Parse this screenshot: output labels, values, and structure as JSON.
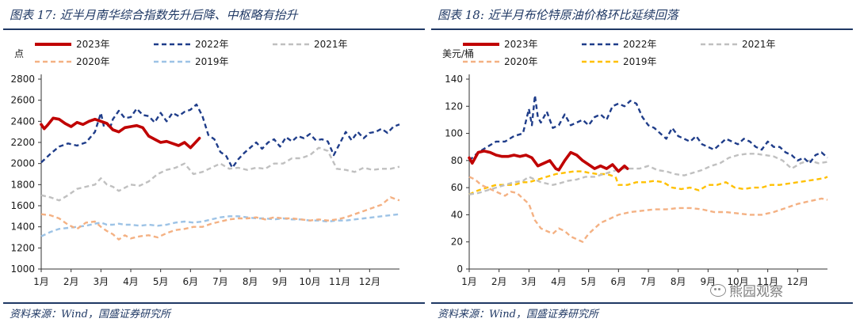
{
  "figures": [
    {
      "title": "图表 17:  近半月南华综合指数先升后降、中枢略有抬升",
      "source": "资料来源：Wind，国盛证券研究所"
    },
    {
      "title": "图表 18:  近半月布伦特原油价格环比延续回落",
      "source": "资料来源：Wind，国盛证券研究所",
      "watermark": "熊园观察"
    }
  ],
  "chart_data": [
    {
      "type": "line",
      "ylabel": "点",
      "ylim": [
        1000,
        2800
      ],
      "yticks": [
        1000,
        1200,
        1400,
        1600,
        1800,
        2000,
        2200,
        2400,
        2600,
        2800
      ],
      "xlim": [
        1,
        13
      ],
      "xticks": [
        1,
        2,
        3,
        4,
        5,
        6,
        7,
        8,
        9,
        10,
        11,
        12
      ],
      "xtick_labels": [
        "1月",
        "2月",
        "3月",
        "4月",
        "5月",
        "6月",
        "7月",
        "8月",
        "9月",
        "10月",
        "11月",
        "12月"
      ],
      "legend_placement": "top",
      "series": [
        {
          "name": "2023年",
          "color": "#c00000",
          "style": "solid",
          "width": 3.6,
          "x": [
            1.0,
            1.1,
            1.2,
            1.4,
            1.6,
            1.8,
            2.0,
            2.2,
            2.4,
            2.6,
            2.8,
            3.0,
            3.2,
            3.4,
            3.6,
            3.8,
            4.0,
            4.2,
            4.4,
            4.6,
            4.8,
            5.0,
            5.2,
            5.4,
            5.6,
            5.8,
            6.0,
            6.1,
            6.3
          ],
          "y": [
            2370,
            2330,
            2360,
            2430,
            2420,
            2380,
            2350,
            2390,
            2370,
            2400,
            2420,
            2400,
            2380,
            2320,
            2300,
            2340,
            2350,
            2360,
            2340,
            2260,
            2230,
            2200,
            2210,
            2190,
            2170,
            2200,
            2150,
            2180,
            2240
          ]
        },
        {
          "name": "2022年",
          "color": "#1f3d8a",
          "style": "dashed",
          "width": 2.4,
          "x": [
            1.0,
            1.3,
            1.6,
            1.9,
            2.2,
            2.5,
            2.8,
            3.0,
            3.1,
            3.2,
            3.3,
            3.4,
            3.6,
            3.8,
            4.0,
            4.2,
            4.4,
            4.6,
            4.8,
            5.0,
            5.2,
            5.4,
            5.6,
            5.8,
            6.0,
            6.2,
            6.4,
            6.6,
            6.8,
            7.0,
            7.2,
            7.4,
            7.6,
            7.8,
            8.0,
            8.2,
            8.4,
            8.6,
            8.8,
            9.0,
            9.2,
            9.4,
            9.6,
            9.8,
            10.0,
            10.2,
            10.4,
            10.6,
            10.8,
            11.0,
            11.2,
            11.4,
            11.6,
            11.8,
            12.0,
            12.2,
            12.4,
            12.6,
            12.8,
            13.0
          ],
          "y": [
            2010,
            2090,
            2160,
            2190,
            2170,
            2200,
            2300,
            2480,
            2350,
            2380,
            2330,
            2420,
            2500,
            2430,
            2440,
            2520,
            2460,
            2450,
            2390,
            2480,
            2400,
            2480,
            2450,
            2490,
            2510,
            2560,
            2450,
            2270,
            2230,
            2110,
            2070,
            1960,
            2040,
            2100,
            2150,
            2200,
            2140,
            2200,
            2230,
            2160,
            2250,
            2210,
            2260,
            2240,
            2280,
            2220,
            2230,
            2210,
            2080,
            2190,
            2300,
            2220,
            2300,
            2240,
            2290,
            2300,
            2330,
            2290,
            2350,
            2370
          ]
        },
        {
          "name": "2021年",
          "color": "#c0c0c0",
          "style": "dashed",
          "width": 2.4,
          "x": [
            1.0,
            1.3,
            1.6,
            1.9,
            2.2,
            2.5,
            2.8,
            3.0,
            3.2,
            3.4,
            3.6,
            3.8,
            4.0,
            4.3,
            4.6,
            4.9,
            5.2,
            5.5,
            5.8,
            6.1,
            6.4,
            6.7,
            7.0,
            7.3,
            7.6,
            7.9,
            8.2,
            8.5,
            8.8,
            9.1,
            9.4,
            9.7,
            10.0,
            10.3,
            10.6,
            10.9,
            11.2,
            11.5,
            11.8,
            12.1,
            12.4,
            12.7,
            13.0
          ],
          "y": [
            1700,
            1680,
            1650,
            1700,
            1760,
            1780,
            1800,
            1860,
            1800,
            1780,
            1740,
            1770,
            1800,
            1790,
            1830,
            1900,
            1940,
            1960,
            2000,
            1900,
            1920,
            1960,
            2000,
            1950,
            1960,
            1940,
            1960,
            1950,
            2000,
            2000,
            2050,
            2050,
            2080,
            2150,
            2120,
            1950,
            1940,
            1920,
            1960,
            1940,
            1950,
            1950,
            1970
          ]
        },
        {
          "name": "2020年",
          "color": "#f4b183",
          "style": "dashed",
          "width": 2.4,
          "x": [
            1.0,
            1.3,
            1.6,
            1.9,
            2.2,
            2.5,
            2.8,
            3.0,
            3.2,
            3.4,
            3.6,
            3.8,
            4.0,
            4.3,
            4.6,
            4.9,
            5.2,
            5.5,
            5.8,
            6.1,
            6.4,
            6.7,
            7.0,
            7.3,
            7.6,
            7.9,
            8.2,
            8.5,
            8.8,
            9.1,
            9.4,
            9.7,
            10.0,
            10.3,
            10.6,
            10.9,
            11.2,
            11.5,
            11.8,
            12.1,
            12.4,
            12.7,
            13.0
          ],
          "y": [
            1520,
            1510,
            1480,
            1420,
            1380,
            1440,
            1450,
            1400,
            1360,
            1330,
            1280,
            1320,
            1290,
            1310,
            1320,
            1300,
            1340,
            1370,
            1380,
            1400,
            1400,
            1430,
            1450,
            1470,
            1480,
            1480,
            1490,
            1470,
            1490,
            1480,
            1480,
            1470,
            1460,
            1470,
            1460,
            1470,
            1490,
            1520,
            1550,
            1580,
            1610,
            1680,
            1650
          ]
        },
        {
          "name": "2019年",
          "color": "#9dc3e6",
          "style": "dashed",
          "width": 2.4,
          "x": [
            1.0,
            1.3,
            1.6,
            1.9,
            2.2,
            2.5,
            2.8,
            3.0,
            3.2,
            3.4,
            3.6,
            3.8,
            4.0,
            4.3,
            4.6,
            4.9,
            5.2,
            5.5,
            5.8,
            6.1,
            6.4,
            6.7,
            7.0,
            7.3,
            7.6,
            7.9,
            8.2,
            8.5,
            8.8,
            9.1,
            9.4,
            9.7,
            10.0,
            10.3,
            10.6,
            10.9,
            11.2,
            11.5,
            11.8,
            12.1,
            12.4,
            12.7,
            13.0
          ],
          "y": [
            1310,
            1350,
            1380,
            1390,
            1400,
            1410,
            1430,
            1440,
            1420,
            1420,
            1430,
            1420,
            1420,
            1410,
            1420,
            1410,
            1420,
            1440,
            1450,
            1440,
            1450,
            1470,
            1490,
            1500,
            1500,
            1490,
            1480,
            1480,
            1470,
            1480,
            1470,
            1470,
            1460,
            1460,
            1450,
            1460,
            1460,
            1470,
            1480,
            1490,
            1500,
            1510,
            1520
          ]
        }
      ]
    },
    {
      "type": "line",
      "ylabel": "美元/桶",
      "ylim": [
        0,
        140
      ],
      "yticks": [
        0,
        20,
        40,
        60,
        80,
        100,
        120,
        140
      ],
      "xlim": [
        1,
        13
      ],
      "xticks": [
        1,
        2,
        3,
        4,
        5,
        6,
        7,
        8,
        9,
        10,
        11,
        12
      ],
      "xtick_labels": [
        "1月",
        "2月",
        "3月",
        "4月",
        "5月",
        "6月",
        "7月",
        "8月",
        "9月",
        "10月",
        "11月",
        "12月"
      ],
      "legend_placement": "top",
      "series": [
        {
          "name": "2023年",
          "color": "#c00000",
          "style": "solid",
          "width": 3.6,
          "x": [
            1.0,
            1.1,
            1.3,
            1.5,
            1.7,
            1.9,
            2.1,
            2.3,
            2.5,
            2.7,
            2.9,
            3.1,
            3.3,
            3.5,
            3.7,
            3.9,
            4.0,
            4.2,
            4.4,
            4.6,
            4.8,
            5.0,
            5.2,
            5.4,
            5.6,
            5.8,
            6.0,
            6.2,
            6.3
          ],
          "y": [
            82,
            78,
            86,
            87,
            86,
            84,
            83,
            83,
            84,
            83,
            84,
            82,
            76,
            78,
            80,
            74,
            73,
            80,
            86,
            84,
            80,
            77,
            74,
            76,
            74,
            77,
            72,
            76,
            74
          ]
        },
        {
          "name": "2022年",
          "color": "#1f3d8a",
          "style": "dashed",
          "width": 2.4,
          "x": [
            1.0,
            1.3,
            1.6,
            1.9,
            2.2,
            2.5,
            2.8,
            3.0,
            3.1,
            3.2,
            3.3,
            3.4,
            3.6,
            3.8,
            4.0,
            4.2,
            4.4,
            4.6,
            4.8,
            5.0,
            5.2,
            5.4,
            5.6,
            5.8,
            6.0,
            6.2,
            6.4,
            6.6,
            6.8,
            7.0,
            7.2,
            7.4,
            7.6,
            7.8,
            8.0,
            8.2,
            8.4,
            8.6,
            8.8,
            9.0,
            9.2,
            9.4,
            9.6,
            9.8,
            10.0,
            10.2,
            10.4,
            10.6,
            10.8,
            11.0,
            11.2,
            11.4,
            11.6,
            11.8,
            12.0,
            12.2,
            12.4,
            12.6,
            12.8,
            13.0
          ],
          "y": [
            80,
            86,
            90,
            94,
            94,
            98,
            100,
            118,
            106,
            128,
            112,
            108,
            116,
            104,
            106,
            114,
            106,
            108,
            110,
            106,
            112,
            114,
            110,
            120,
            122,
            120,
            124,
            122,
            112,
            106,
            104,
            100,
            96,
            104,
            98,
            96,
            94,
            98,
            92,
            90,
            88,
            92,
            96,
            94,
            92,
            96,
            94,
            90,
            88,
            94,
            90,
            90,
            86,
            84,
            80,
            82,
            78,
            84,
            86,
            82
          ]
        },
        {
          "name": "2021年",
          "color": "#c0c0c0",
          "style": "dashed",
          "width": 2.4,
          "x": [
            1.0,
            1.3,
            1.6,
            1.9,
            2.2,
            2.5,
            2.8,
            3.0,
            3.2,
            3.4,
            3.6,
            3.8,
            4.0,
            4.3,
            4.6,
            4.9,
            5.2,
            5.5,
            5.8,
            6.1,
            6.4,
            6.7,
            7.0,
            7.3,
            7.6,
            7.9,
            8.2,
            8.5,
            8.8,
            9.1,
            9.4,
            9.7,
            10.0,
            10.3,
            10.6,
            10.9,
            11.2,
            11.5,
            11.8,
            12.1,
            12.4,
            12.7,
            13.0
          ],
          "y": [
            55,
            56,
            58,
            60,
            62,
            64,
            65,
            68,
            66,
            64,
            63,
            62,
            63,
            65,
            66,
            68,
            68,
            70,
            72,
            74,
            74,
            74,
            76,
            73,
            72,
            70,
            69,
            71,
            73,
            76,
            78,
            82,
            84,
            85,
            85,
            84,
            83,
            80,
            74,
            78,
            80,
            78,
            79
          ]
        },
        {
          "name": "2020年",
          "color": "#f4b183",
          "style": "dashed",
          "width": 2.4,
          "x": [
            1.0,
            1.2,
            1.4,
            1.6,
            1.8,
            2.0,
            2.2,
            2.4,
            2.6,
            2.8,
            3.0,
            3.2,
            3.4,
            3.6,
            3.8,
            4.0,
            4.2,
            4.4,
            4.6,
            4.8,
            5.0,
            5.2,
            5.4,
            5.6,
            5.8,
            6.0,
            6.4,
            6.8,
            7.2,
            7.6,
            8.0,
            8.4,
            8.8,
            9.2,
            9.6,
            10.0,
            10.4,
            10.8,
            11.2,
            11.6,
            12.0,
            12.4,
            12.8,
            13.0
          ],
          "y": [
            68,
            66,
            62,
            60,
            58,
            56,
            54,
            57,
            56,
            52,
            48,
            36,
            30,
            28,
            26,
            30,
            28,
            24,
            22,
            20,
            26,
            30,
            34,
            36,
            38,
            40,
            42,
            43,
            44,
            44,
            45,
            45,
            44,
            42,
            42,
            41,
            40,
            40,
            42,
            45,
            48,
            50,
            52,
            51
          ]
        },
        {
          "name": "2019年",
          "color": "#ffc000",
          "style": "dashed",
          "width": 2.4,
          "x": [
            1.0,
            1.3,
            1.6,
            1.9,
            2.2,
            2.5,
            2.8,
            3.0,
            3.3,
            3.6,
            3.9,
            4.2,
            4.5,
            4.8,
            5.0,
            5.3,
            5.6,
            5.9,
            6.0,
            6.3,
            6.6,
            6.9,
            7.2,
            7.5,
            7.8,
            8.1,
            8.4,
            8.7,
            9.0,
            9.3,
            9.6,
            9.9,
            10.2,
            10.5,
            10.8,
            11.1,
            11.4,
            11.7,
            12.0,
            12.3,
            12.6,
            12.9,
            13.0
          ],
          "y": [
            55,
            58,
            60,
            62,
            62,
            62,
            64,
            64,
            66,
            68,
            70,
            71,
            72,
            72,
            71,
            70,
            70,
            68,
            62,
            62,
            64,
            64,
            65,
            64,
            60,
            59,
            60,
            58,
            62,
            62,
            64,
            60,
            59,
            60,
            60,
            62,
            62,
            63,
            64,
            65,
            66,
            67,
            68
          ]
        }
      ]
    }
  ]
}
